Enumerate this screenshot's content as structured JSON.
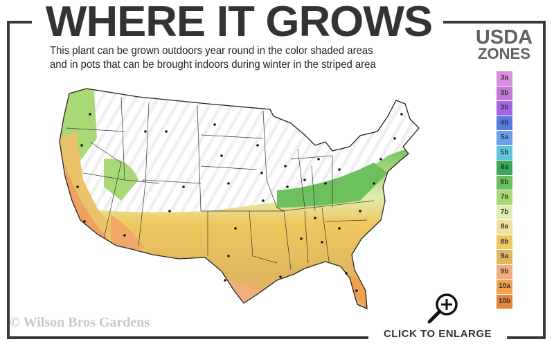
{
  "header": {
    "title": "WHERE IT GROWS",
    "subtitle_line1": "This plant can be grown outdoors year round in the color shaded areas",
    "subtitle_line2": "and in pots that can be brought indoors during winter in the striped area"
  },
  "legend": {
    "title_line1": "USDA",
    "title_line2": "ZONES",
    "zones": [
      {
        "label": "3a",
        "color": "#d98ee0"
      },
      {
        "label": "3b",
        "color": "#c27ad6"
      },
      {
        "label": "3b",
        "color": "#a466e8"
      },
      {
        "label": "4b",
        "color": "#5a78e6"
      },
      {
        "label": "5a",
        "color": "#6a9ef0"
      },
      {
        "label": "5b",
        "color": "#5cc6e0"
      },
      {
        "label": "6a",
        "color": "#3aa858"
      },
      {
        "label": "6b",
        "color": "#6cc05e"
      },
      {
        "label": "7a",
        "color": "#a9d877"
      },
      {
        "label": "7b",
        "color": "#e2edb2"
      },
      {
        "label": "8a",
        "color": "#f0e0a0"
      },
      {
        "label": "8b",
        "color": "#efc85e"
      },
      {
        "label": "9a",
        "color": "#e0b65e"
      },
      {
        "label": "9b",
        "color": "#f0b07e"
      },
      {
        "label": "10a",
        "color": "#f0a04e"
      },
      {
        "label": "10b",
        "color": "#e68636"
      }
    ]
  },
  "footer": {
    "watermark": "© Wilson Bros Gardens",
    "enlarge_label": "CLICK TO ENLARGE",
    "enlarge_icon": "zoom-in-magnifier-icon"
  }
}
